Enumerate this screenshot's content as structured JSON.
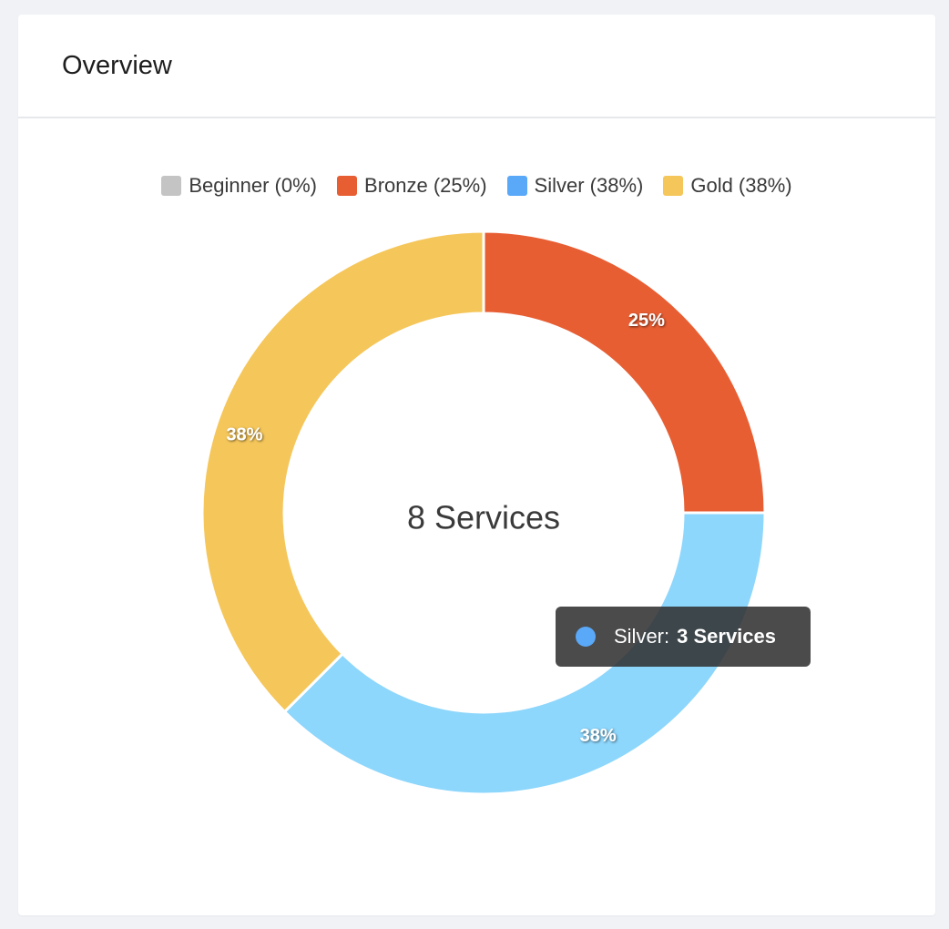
{
  "card": {
    "title": "Overview"
  },
  "chart_data": {
    "type": "pie",
    "variant": "doughnut",
    "center_label": "8 Services",
    "categories": [
      "Beginner",
      "Bronze",
      "Silver",
      "Gold"
    ],
    "values": [
      0,
      2,
      3,
      3
    ],
    "percent_labels": [
      "0%",
      "25%",
      "38%",
      "38%"
    ],
    "legend": [
      "Beginner (0%)",
      "Bronze (25%)",
      "Silver (38%)",
      "Gold (38%)"
    ],
    "legend_position": "top",
    "slice_colors": [
      "#c4c4c4",
      "#e85e33",
      "#8dd6fc",
      "#f5c65a"
    ],
    "legend_colors": [
      "#c4c4c4",
      "#e85e33",
      "#5aa8f8",
      "#f5c65a"
    ]
  },
  "tooltip": {
    "label": "Silver:",
    "value": "3 Services",
    "dot_color": "#5aa8f8"
  }
}
